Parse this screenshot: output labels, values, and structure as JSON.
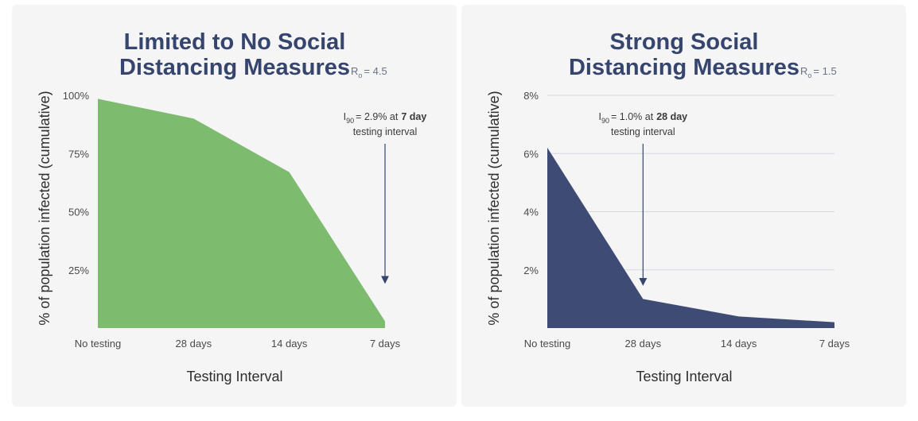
{
  "chart_data": [
    {
      "type": "area",
      "title_line1": "Limited to No Social",
      "title_line2": "Distancing Measures",
      "r0_symbol": "R",
      "r0_sub": "o",
      "r0_value": "= 4.5",
      "ylabel": "% of population infected (cumulative)",
      "xlabel": "Testing Interval",
      "categories": [
        "No testing",
        "28 days",
        "14 days",
        "7 days"
      ],
      "values": [
        98.5,
        90,
        67,
        2.9
      ],
      "ylim": [
        0,
        100
      ],
      "yticks": [
        25,
        50,
        75,
        100
      ],
      "ytick_labels": [
        "25%",
        "50%",
        "75%",
        "100%"
      ],
      "grid": false,
      "color": "#7dbb6f",
      "annotation": {
        "symbol": "I",
        "sub": "90",
        "text": "= 2.9% at",
        "bold": "7 day",
        "line2": "testing interval",
        "category_index": 3,
        "arrow_to_value": 19
      }
    },
    {
      "type": "area",
      "title_line1": "Strong Social",
      "title_line2": "Distancing Measures",
      "r0_symbol": "R",
      "r0_sub": "o",
      "r0_value": "= 1.5",
      "ylabel": "% of population infected (cumulative)",
      "xlabel": "Testing Interval",
      "categories": [
        "No testing",
        "28 days",
        "14 days",
        "7 days"
      ],
      "values": [
        6.2,
        1.0,
        0.4,
        0.2
      ],
      "ylim": [
        0,
        8
      ],
      "yticks": [
        2,
        4,
        6,
        8
      ],
      "ytick_labels": [
        "2%",
        "4%",
        "6%",
        "8%"
      ],
      "grid": true,
      "color": "#3e4b74",
      "annotation": {
        "symbol": "I",
        "sub": "90",
        "text": "= 1.0% at",
        "bold": "28 day",
        "line2": "testing interval",
        "category_index": 1,
        "arrow_to_value": 1.45
      }
    }
  ]
}
